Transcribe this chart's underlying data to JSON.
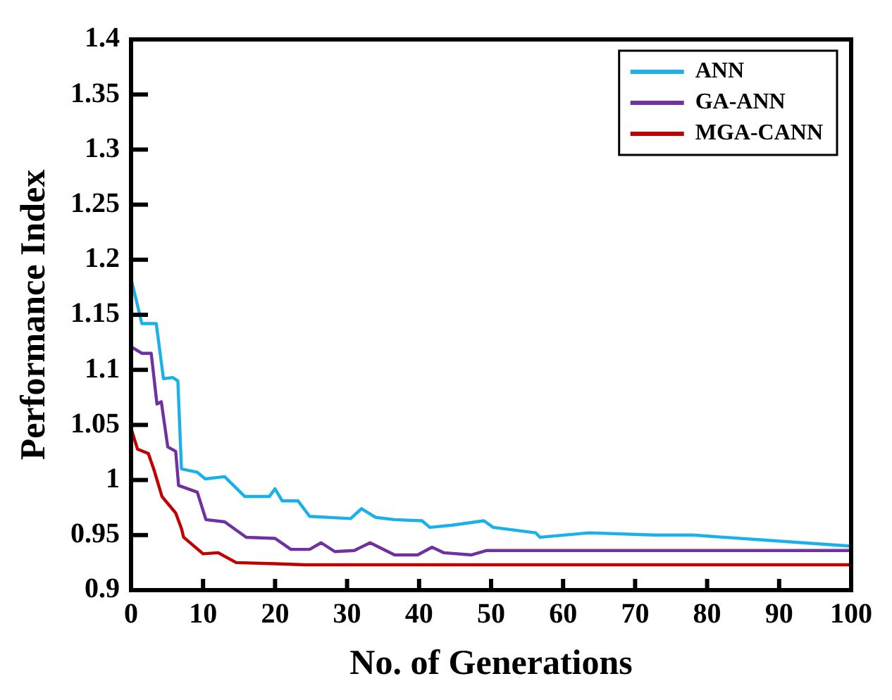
{
  "chart_data": {
    "type": "line",
    "xlabel": "No. of Generations",
    "ylabel": "Performance Index",
    "xlim": [
      0,
      100
    ],
    "xticks": [
      0,
      10,
      20,
      30,
      40,
      50,
      60,
      70,
      80,
      90,
      100
    ],
    "ylim": [
      0.9,
      1.4
    ],
    "yticks": [
      0.9,
      0.95,
      1,
      1.05,
      1.1,
      1.15,
      1.2,
      1.25,
      1.3,
      1.35,
      1.4
    ],
    "grid": false,
    "legend": "top right",
    "marker": "none",
    "line_style": "solid",
    "series": [
      {
        "name": "ANN",
        "color": "#1ab0e8",
        "x": [
          0,
          1.5,
          3.5,
          4.5,
          5.8,
          6.5,
          7,
          9.2,
          10.3,
          13,
          15.8,
          19.2,
          20,
          21,
          23.2,
          24.8,
          30.5,
          32,
          34,
          36.6,
          40.4,
          41.5,
          44.6,
          49,
          50.3,
          56.2,
          56.8,
          63.6,
          72.7,
          78,
          100
        ],
        "values": [
          1.183,
          1.142,
          1.142,
          1.092,
          1.093,
          1.09,
          1.01,
          1.007,
          1.001,
          1.003,
          0.985,
          0.985,
          0.992,
          0.981,
          0.981,
          0.967,
          0.965,
          0.974,
          0.966,
          0.964,
          0.963,
          0.957,
          0.959,
          0.963,
          0.957,
          0.952,
          0.948,
          0.952,
          0.95,
          0.95,
          0.94
        ]
      },
      {
        "name": "GA-ANN",
        "color": "#7030a0",
        "x": [
          0,
          1.5,
          2.8,
          3.6,
          4.2,
          5.1,
          6.2,
          6.6,
          9.2,
          10.4,
          13,
          16,
          20,
          22.2,
          24.8,
          26.4,
          28.3,
          31,
          33.2,
          36.6,
          39.8,
          41.8,
          43.4,
          47.3,
          49.4,
          100
        ],
        "values": [
          1.121,
          1.115,
          1.115,
          1.069,
          1.071,
          1.03,
          1.026,
          0.995,
          0.989,
          0.964,
          0.962,
          0.948,
          0.947,
          0.937,
          0.937,
          0.943,
          0.935,
          0.936,
          0.943,
          0.932,
          0.932,
          0.939,
          0.934,
          0.932,
          0.936,
          0.936
        ]
      },
      {
        "name": "MGA-CANN",
        "color": "#c00000",
        "x": [
          0,
          0.9,
          2.4,
          3.2,
          4.3,
          6.2,
          7,
          7.3,
          10,
          12.1,
          14.6,
          20,
          24.2,
          100
        ],
        "values": [
          1.047,
          1.028,
          1.024,
          1.009,
          0.985,
          0.97,
          0.956,
          0.948,
          0.933,
          0.934,
          0.925,
          0.924,
          0.923,
          0.923
        ]
      }
    ]
  }
}
